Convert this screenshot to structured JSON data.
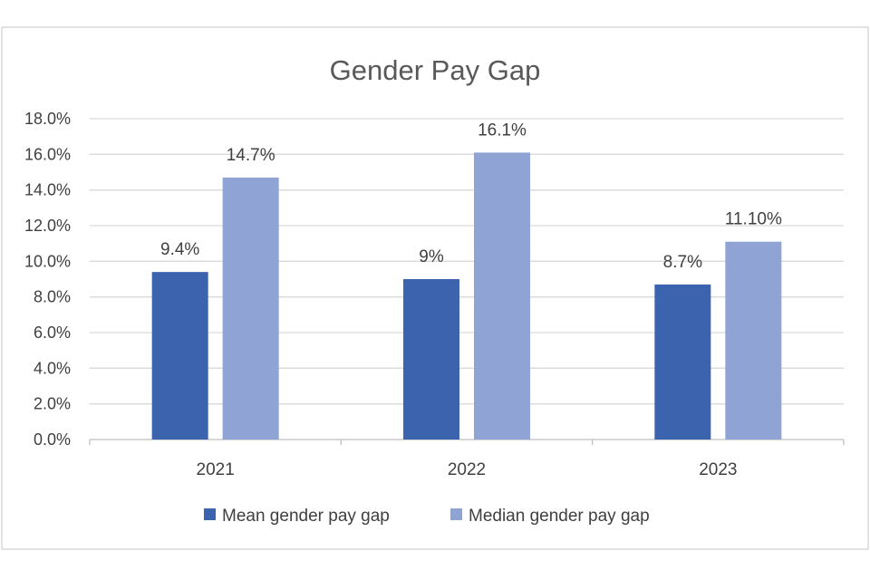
{
  "chart_data": {
    "type": "bar",
    "title": "Gender Pay Gap",
    "categories": [
      "2021",
      "2022",
      "2023"
    ],
    "series": [
      {
        "name": "Mean gender pay gap",
        "values": [
          9.4,
          9.0,
          8.7
        ],
        "labels": [
          "9.4%",
          "9%",
          "8.7%"
        ],
        "color": "#3c63ae"
      },
      {
        "name": "Median gender pay gap",
        "values": [
          14.7,
          16.1,
          11.1
        ],
        "labels": [
          "14.7%",
          "16.1%",
          "11.10%"
        ],
        "color": "#8fa4d5"
      }
    ],
    "ylim": [
      0,
      18
    ],
    "yticks": [
      0,
      2,
      4,
      6,
      8,
      10,
      12,
      14,
      16,
      18
    ],
    "ytick_labels": [
      "0.0%",
      "2.0%",
      "4.0%",
      "6.0%",
      "8.0%",
      "10.0%",
      "12.0%",
      "14.0%",
      "16.0%",
      "18.0%"
    ],
    "grid": true,
    "legend_position": "bottom",
    "gridline_color": "#d9d9d9",
    "border_color": "#d9d9d9"
  }
}
